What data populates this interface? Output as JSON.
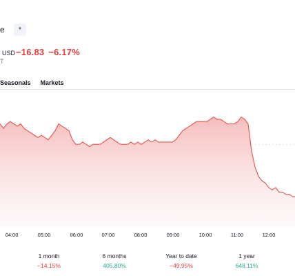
{
  "header": {
    "chevron": "e",
    "star_glyph": "*"
  },
  "price": {
    "currency": "USD",
    "change": "−16.83",
    "change_pct": "−6.17%"
  },
  "sub": {
    "fragment": "T"
  },
  "tabs": [
    {
      "label": "Seasonals"
    },
    {
      "label": "Markets"
    }
  ],
  "chart_data": {
    "type": "area",
    "x_ticks": [
      "04:00",
      "05:00",
      "06:00",
      "07:00",
      "08:00",
      "09:00",
      "10:00",
      "11:00",
      "12:00"
    ],
    "series": [
      {
        "color": "#e0524f",
        "points": [
          [
            0,
            275
          ],
          [
            5,
            273
          ],
          [
            10,
            275
          ],
          [
            15,
            276
          ],
          [
            20,
            275
          ],
          [
            25,
            274
          ],
          [
            30,
            275
          ],
          [
            35,
            273
          ],
          [
            40,
            272
          ],
          [
            45,
            271
          ],
          [
            50,
            270
          ],
          [
            55,
            269
          ],
          [
            60,
            270
          ],
          [
            65,
            269
          ],
          [
            70,
            268
          ],
          [
            75,
            270
          ],
          [
            80,
            272
          ],
          [
            85,
            275
          ],
          [
            90,
            274
          ],
          [
            95,
            273
          ],
          [
            100,
            272
          ],
          [
            105,
            268
          ],
          [
            110,
            266
          ],
          [
            115,
            266
          ],
          [
            120,
            267
          ],
          [
            125,
            266
          ],
          [
            130,
            265
          ],
          [
            135,
            266
          ],
          [
            140,
            266
          ],
          [
            145,
            266
          ],
          [
            150,
            267
          ],
          [
            155,
            268
          ],
          [
            160,
            269
          ],
          [
            165,
            268
          ],
          [
            170,
            267
          ],
          [
            175,
            266
          ],
          [
            180,
            266
          ],
          [
            185,
            266
          ],
          [
            190,
            267
          ],
          [
            195,
            266
          ],
          [
            200,
            267
          ],
          [
            205,
            266
          ],
          [
            210,
            267
          ],
          [
            215,
            268
          ],
          [
            220,
            267
          ],
          [
            225,
            268
          ],
          [
            230,
            267
          ],
          [
            235,
            267
          ],
          [
            240,
            267
          ],
          [
            245,
            267
          ],
          [
            250,
            267
          ],
          [
            255,
            268
          ],
          [
            260,
            270
          ],
          [
            265,
            272
          ],
          [
            270,
            273
          ],
          [
            275,
            274
          ],
          [
            280,
            275
          ],
          [
            285,
            276
          ],
          [
            290,
            276
          ],
          [
            295,
            276
          ],
          [
            300,
            276
          ],
          [
            305,
            277
          ],
          [
            310,
            278
          ],
          [
            315,
            277
          ],
          [
            320,
            277
          ],
          [
            325,
            276
          ],
          [
            330,
            275
          ],
          [
            335,
            275
          ],
          [
            340,
            275
          ],
          [
            345,
            276
          ],
          [
            350,
            278
          ],
          [
            355,
            277
          ],
          [
            360,
            275
          ],
          [
            365,
            263
          ],
          [
            370,
            256
          ],
          [
            375,
            252
          ],
          [
            380,
            250
          ],
          [
            385,
            249
          ],
          [
            390,
            247
          ],
          [
            395,
            246
          ],
          [
            400,
            247
          ],
          [
            405,
            245
          ],
          [
            410,
            245
          ],
          [
            415,
            244
          ],
          [
            420,
            244
          ],
          [
            425,
            243
          ],
          [
            428,
            243
          ]
        ]
      }
    ],
    "ylim": [
      230,
      290
    ],
    "reference_line": 266
  },
  "performance": [
    {
      "label": "1 month",
      "value": "−14.15%",
      "sign": "neg"
    },
    {
      "label": "6 months",
      "value": "405.80%",
      "sign": "pos"
    },
    {
      "label": "Year to date",
      "value": "−49.95%",
      "sign": "neg"
    },
    {
      "label": "1 year",
      "value": "648.11%",
      "sign": "pos"
    }
  ]
}
